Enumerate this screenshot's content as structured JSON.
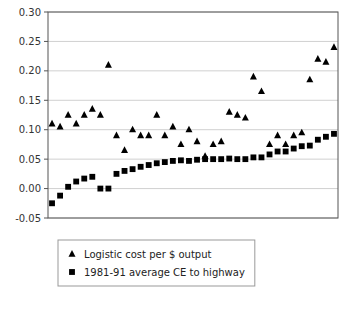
{
  "chart_data": {
    "type": "scatter",
    "categories": [
      null,
      null,
      null,
      null,
      null,
      null,
      null,
      null,
      null,
      null,
      null,
      null,
      null,
      null,
      null,
      null,
      null,
      null,
      null,
      null,
      null,
      null,
      null,
      null,
      null,
      null,
      null,
      null,
      null,
      null,
      null,
      null,
      null,
      null,
      null,
      null
    ],
    "series": [
      {
        "name": "Logistic cost per $ output",
        "color": "#000000",
        "marker": "triangle",
        "values": [
          0.11,
          0.105,
          0.125,
          0.11,
          0.125,
          0.135,
          0.125,
          0.21,
          0.09,
          0.065,
          0.1,
          0.09,
          0.09,
          0.125,
          0.09,
          0.105,
          0.075,
          0.1,
          0.08,
          0.055,
          0.075,
          0.08,
          0.13,
          0.125,
          0.12,
          0.19,
          0.165,
          0.075,
          0.09,
          0.075,
          0.09,
          0.095,
          0.185,
          0.22,
          0.215,
          0.24
        ]
      },
      {
        "name": "1981-91 average CE to highway",
        "color": "#000000",
        "marker": "square",
        "values": [
          -0.025,
          -0.012,
          0.003,
          0.012,
          0.017,
          0.02,
          0.0,
          0.0,
          0.025,
          0.03,
          0.033,
          0.037,
          0.04,
          0.043,
          0.045,
          0.047,
          0.048,
          0.047,
          0.049,
          0.05,
          0.05,
          0.05,
          0.051,
          0.05,
          0.05,
          0.053,
          0.053,
          0.058,
          0.063,
          0.063,
          0.068,
          0.072,
          0.073,
          0.083,
          0.088,
          0.093
        ]
      }
    ],
    "ylim": [
      -0.05,
      0.3
    ],
    "yticks": [
      -0.05,
      {
        "value": 0,
        "label": "0.00"
      },
      0.05,
      {
        "value": 0.1,
        "label": "0.10"
      },
      0.15,
      {
        "value": 0.2,
        "label": "0.20"
      },
      0.25,
      {
        "value": 0.3,
        "label": "0.30"
      }
    ],
    "grid": true,
    "legend": "bottom",
    "tick_labels": "y"
  }
}
